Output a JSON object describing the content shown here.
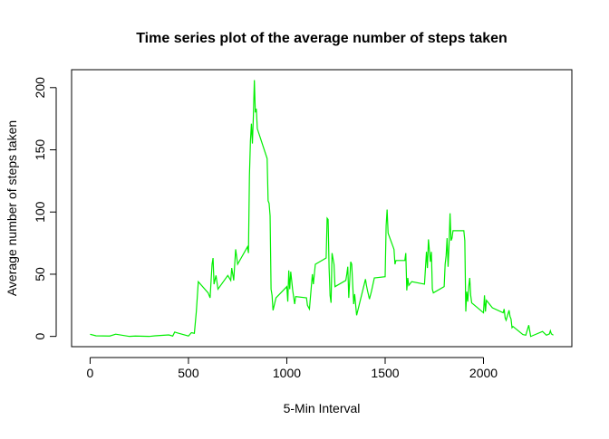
{
  "chart_data": {
    "type": "line",
    "title": "Time series plot of the average number of steps taken",
    "x_label": "5-Min Interval",
    "y_label": "Average number of steps taken",
    "x": [
      0,
      30,
      100,
      130,
      200,
      230,
      300,
      330,
      400,
      420,
      430,
      440,
      450,
      500,
      515,
      530,
      540,
      550,
      600,
      610,
      620,
      625,
      630,
      640,
      650,
      700,
      715,
      720,
      730,
      740,
      750,
      800,
      805,
      810,
      815,
      820,
      825,
      830,
      835,
      840,
      845,
      850,
      900,
      905,
      910,
      915,
      920,
      925,
      930,
      945,
      1000,
      1005,
      1010,
      1015,
      1020,
      1030,
      1040,
      1045,
      1100,
      1105,
      1115,
      1130,
      1135,
      1145,
      1200,
      1205,
      1210,
      1215,
      1220,
      1225,
      1230,
      1240,
      1245,
      1300,
      1305,
      1310,
      1315,
      1325,
      1330,
      1340,
      1345,
      1355,
      1400,
      1405,
      1410,
      1420,
      1430,
      1445,
      1500,
      1505,
      1510,
      1515,
      1545,
      1550,
      1555,
      1600,
      1605,
      1610,
      1615,
      1620,
      1635,
      1700,
      1710,
      1715,
      1720,
      1725,
      1730,
      1735,
      1740,
      1745,
      1800,
      1805,
      1810,
      1815,
      1820,
      1825,
      1830,
      1835,
      1840,
      1845,
      1900,
      1905,
      1910,
      1915,
      1920,
      1925,
      1930,
      1935,
      1940,
      2000,
      2005,
      2010,
      2015,
      2030,
      2045,
      2100,
      2105,
      2110,
      2115,
      2130,
      2135,
      2140,
      2145,
      2150,
      2200,
      2215,
      2230,
      2240,
      2245,
      2300,
      2320,
      2335,
      2340,
      2345,
      2355
    ],
    "series": [
      {
        "name": "steps",
        "color": "#00ee00",
        "values": [
          1.7,
          0.5,
          0.3,
          1.8,
          0,
          0.3,
          0,
          0.5,
          1.2,
          0.3,
          3.5,
          3,
          2.5,
          0.3,
          3,
          2.5,
          20,
          44,
          35,
          31,
          58,
          63,
          42,
          49,
          38,
          49,
          45,
          55,
          45,
          70,
          58,
          72,
          67,
          129,
          157,
          171,
          155,
          177,
          206,
          180,
          183,
          167,
          143,
          109,
          107,
          97,
          38,
          33,
          21,
          31,
          40,
          28,
          53,
          38,
          52,
          37,
          26,
          32,
          31,
          25,
          22,
          50,
          42,
          58,
          63,
          95,
          94,
          55,
          33,
          27,
          67,
          58,
          40,
          45,
          50,
          56,
          31,
          60,
          58,
          26,
          34,
          17,
          46,
          41,
          37,
          30,
          36,
          47,
          48,
          89,
          102,
          83,
          70,
          58,
          61,
          61,
          67,
          37,
          47,
          41,
          44,
          42,
          68,
          55,
          78,
          69,
          60,
          68,
          38,
          35,
          40,
          58,
          65,
          79,
          56,
          74,
          99,
          77,
          79,
          85,
          85,
          77,
          20,
          36,
          28,
          40,
          47,
          33,
          27,
          19,
          33,
          20,
          29,
          26,
          23,
          19,
          22,
          15,
          13,
          21,
          16,
          14,
          7,
          8,
          1.5,
          1,
          9,
          0,
          0.3,
          4,
          1,
          2,
          4.5,
          2,
          1
        ]
      }
    ],
    "xlim": [
      -94.2,
      2449.2
    ],
    "ylim": [
      -8.25,
      214.4
    ],
    "xticks": [
      0,
      500,
      1000,
      1500,
      2000
    ],
    "yticks": [
      0,
      50,
      100,
      150,
      200
    ]
  }
}
